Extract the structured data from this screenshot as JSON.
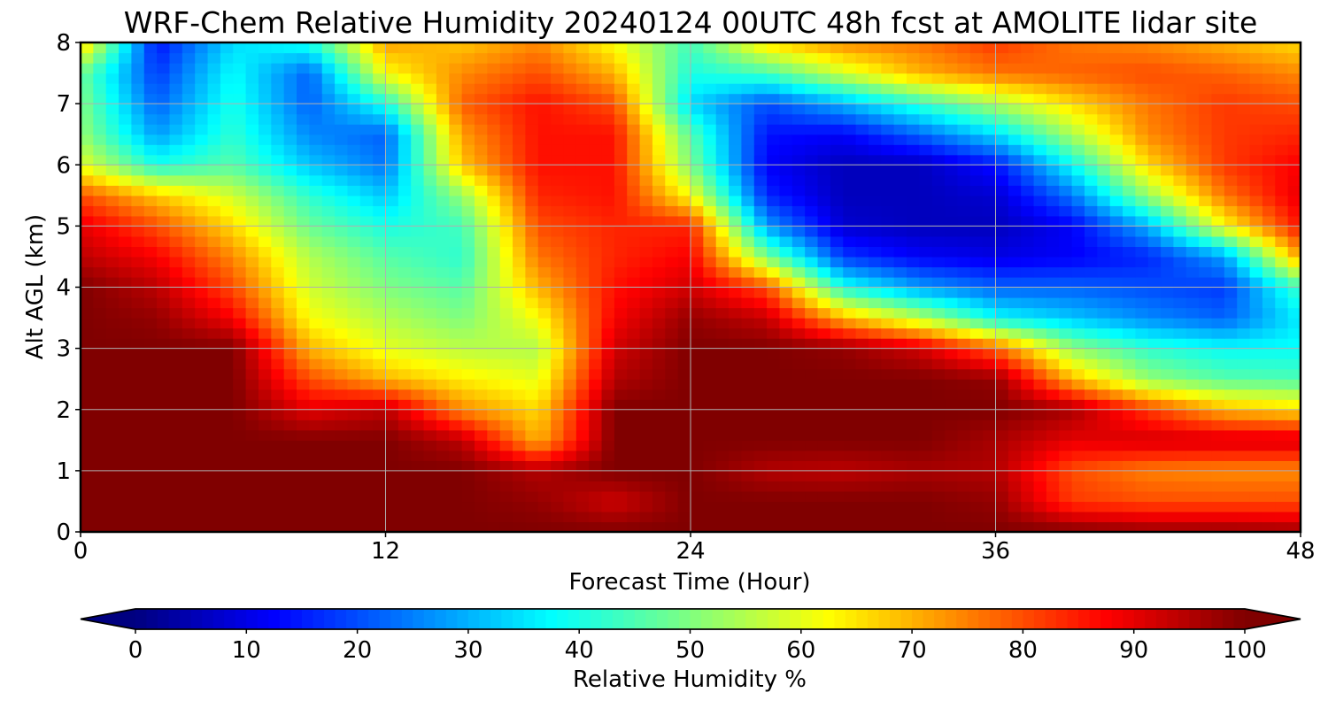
{
  "chart_data": {
    "type": "heatmap",
    "title": "WRF-Chem Relative Humidity 20240124 00UTC 48h fcst at AMOLITE lidar site",
    "xlabel": "Forecast Time (Hour)",
    "ylabel": "Alt AGL (km)",
    "xlim": [
      0,
      48
    ],
    "ylim": [
      0,
      8
    ],
    "xticks": [
      "0",
      "12",
      "24",
      "36",
      "48"
    ],
    "yticks": [
      "0",
      "1",
      "2",
      "3",
      "4",
      "5",
      "6",
      "7",
      "8"
    ],
    "grid": true,
    "colormap": "jet",
    "colorbar": {
      "label": "Relative Humidity %",
      "range": [
        0,
        100
      ],
      "extend": "both",
      "ticks": [
        "0",
        "10",
        "20",
        "30",
        "40",
        "50",
        "60",
        "70",
        "80",
        "90",
        "100"
      ]
    },
    "x": [
      0,
      3,
      6,
      9,
      12,
      15,
      18,
      21,
      24,
      27,
      30,
      33,
      36,
      39,
      42,
      45,
      48
    ],
    "y": [
      0,
      0.5,
      1,
      1.5,
      2,
      2.5,
      3,
      3.5,
      4,
      4.5,
      5,
      5.5,
      6,
      6.5,
      7,
      7.5,
      8
    ],
    "z": [
      [
        100,
        100,
        100,
        100,
        100,
        100,
        100,
        100,
        100,
        100,
        100,
        100,
        100,
        100,
        98,
        98,
        97
      ],
      [
        100,
        100,
        100,
        100,
        100,
        100,
        98,
        92,
        100,
        100,
        100,
        100,
        98,
        82,
        80,
        80,
        80
      ],
      [
        100,
        100,
        100,
        100,
        100,
        100,
        95,
        100,
        100,
        95,
        94,
        96,
        95,
        80,
        75,
        74,
        74
      ],
      [
        100,
        100,
        100,
        100,
        100,
        94,
        70,
        100,
        100,
        100,
        100,
        100,
        96,
        90,
        92,
        92,
        92
      ],
      [
        100,
        100,
        100,
        90,
        94,
        74,
        66,
        100,
        100,
        100,
        100,
        100,
        100,
        96,
        82,
        70,
        66
      ],
      [
        100,
        100,
        100,
        80,
        70,
        64,
        60,
        95,
        100,
        100,
        100,
        100,
        98,
        70,
        52,
        46,
        45
      ],
      [
        100,
        100,
        100,
        70,
        60,
        56,
        55,
        92,
        100,
        100,
        98,
        92,
        78,
        52,
        42,
        38,
        38
      ],
      [
        100,
        98,
        88,
        62,
        55,
        50,
        62,
        88,
        98,
        93,
        70,
        56,
        38,
        32,
        26,
        22,
        36
      ],
      [
        100,
        94,
        80,
        58,
        50,
        46,
        70,
        86,
        92,
        80,
        40,
        28,
        22,
        22,
        20,
        18,
        44
      ],
      [
        94,
        88,
        74,
        55,
        46,
        42,
        76,
        84,
        88,
        50,
        18,
        12,
        10,
        12,
        16,
        28,
        72
      ],
      [
        90,
        80,
        66,
        48,
        40,
        44,
        80,
        84,
        84,
        28,
        8,
        6,
        6,
        12,
        30,
        62,
        86
      ],
      [
        80,
        68,
        58,
        42,
        32,
        52,
        84,
        86,
        62,
        16,
        6,
        6,
        8,
        24,
        52,
        76,
        90
      ],
      [
        60,
        40,
        46,
        32,
        24,
        68,
        86,
        86,
        50,
        12,
        6,
        6,
        14,
        38,
        66,
        82,
        88
      ],
      [
        52,
        28,
        42,
        26,
        22,
        72,
        86,
        86,
        46,
        14,
        12,
        22,
        34,
        54,
        74,
        82,
        84
      ],
      [
        50,
        22,
        40,
        22,
        40,
        78,
        86,
        80,
        34,
        20,
        30,
        42,
        54,
        66,
        76,
        82,
        80
      ],
      [
        48,
        18,
        38,
        22,
        62,
        74,
        80,
        70,
        40,
        44,
        58,
        70,
        76,
        78,
        80,
        78,
        74
      ],
      [
        68,
        14,
        34,
        40,
        72,
        68,
        74,
        62,
        44,
        66,
        74,
        76,
        82,
        76,
        74,
        70,
        66
      ]
    ]
  }
}
